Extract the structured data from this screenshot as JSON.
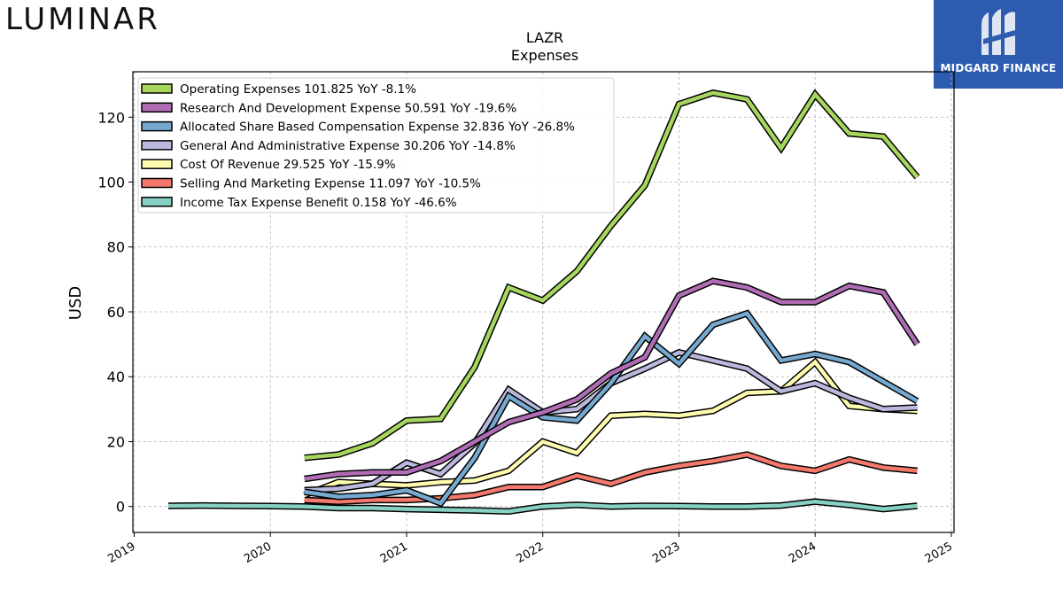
{
  "brand": {
    "left_logo": "LUMINAR",
    "right_logo": "MIDGARD FINANCE"
  },
  "chart_data": {
    "type": "line",
    "title": "LAZR",
    "subtitle": "Expenses",
    "ylabel": "USD",
    "xlabel": "",
    "ylim": [
      -8,
      134
    ],
    "xlim": [
      2018.99,
      2025.02
    ],
    "yticks": [
      0,
      20,
      40,
      60,
      80,
      100,
      120
    ],
    "xticks": [
      "2019",
      "2020",
      "2021",
      "2022",
      "2023",
      "2024",
      "2025"
    ],
    "grid": true,
    "legend_position": "top-left",
    "series": [
      {
        "name": "Operating Expenses  101.825 YoY -8.1%",
        "color": "#a6d65e",
        "x": [
          2020.25,
          2020.5,
          2020.75,
          2021.0,
          2021.25,
          2021.5,
          2021.75,
          2022.0,
          2022.25,
          2022.5,
          2022.75,
          2023.0,
          2023.25,
          2023.5,
          2023.75,
          2024.0,
          2024.25,
          2024.5,
          2024.75
        ],
        "y": [
          15,
          16,
          19.5,
          26.5,
          27,
          43,
          67.5,
          63.5,
          72.5,
          86.5,
          99,
          124,
          127.5,
          125.5,
          110.5,
          127,
          115,
          114,
          101.5
        ]
      },
      {
        "name": "Research And Development Expense  50.591 YoY -19.6%",
        "color": "#b06db5",
        "x": [
          2020.25,
          2020.5,
          2020.75,
          2021.0,
          2021.25,
          2021.5,
          2021.75,
          2022.0,
          2022.25,
          2022.5,
          2022.75,
          2023.0,
          2023.25,
          2023.5,
          2023.75,
          2024.0,
          2024.25,
          2024.5,
          2024.75
        ],
        "y": [
          8.5,
          10,
          10.5,
          10.5,
          14,
          20,
          26,
          29,
          33,
          41,
          46,
          65,
          69.5,
          67.5,
          63,
          63,
          68,
          66,
          50
        ]
      },
      {
        "name": "Allocated Share Based Compensation Expense  32.836 YoY -26.8%",
        "color": "#75a9d0",
        "x": [
          2020.25,
          2020.5,
          2020.75,
          2021.0,
          2021.25,
          2021.5,
          2021.75,
          2022.0,
          2022.25,
          2022.5,
          2022.75,
          2023.0,
          2023.25,
          2023.5,
          2023.75,
          2024.0,
          2024.25,
          2024.5,
          2024.75
        ],
        "y": [
          4.5,
          3,
          3.5,
          5,
          1,
          15,
          34,
          27.5,
          26.5,
          38,
          52.5,
          44,
          56,
          59.5,
          45,
          47,
          44.5,
          38.5,
          32.5
        ]
      },
      {
        "name": "General And Administrative Expense  30.206 YoY -14.8%",
        "color": "#bab8dc",
        "x": [
          2020.25,
          2020.5,
          2020.75,
          2021.0,
          2021.25,
          2021.5,
          2021.75,
          2022.0,
          2022.25,
          2022.5,
          2022.75,
          2023.0,
          2023.25,
          2023.5,
          2023.75,
          2024.0,
          2024.25,
          2024.5,
          2024.75
        ],
        "y": [
          5,
          5.5,
          7,
          13.5,
          10,
          19.5,
          36,
          29,
          30,
          38,
          42.5,
          47.5,
          45,
          42.5,
          35.5,
          38,
          33.5,
          30,
          30.5
        ]
      },
      {
        "name": "Cost Of Revenue  29.525 YoY -15.9%",
        "color": "#fffcb0",
        "x": [
          2020.25,
          2020.5,
          2020.75,
          2021.0,
          2021.25,
          2021.5,
          2021.75,
          2022.0,
          2022.25,
          2022.5,
          2022.75,
          2023.0,
          2023.25,
          2023.5,
          2023.75,
          2024.0,
          2024.25,
          2024.5,
          2024.75
        ],
        "y": [
          3.5,
          7.5,
          7,
          6.5,
          7.5,
          8,
          11,
          20,
          16.5,
          28,
          28.5,
          28,
          29.5,
          35,
          35.5,
          44.5,
          31,
          30,
          29.5
        ]
      },
      {
        "name": "Selling And Marketing Expense  11.097 YoY -10.5%",
        "color": "#f4786c",
        "x": [
          2020.25,
          2020.5,
          2020.75,
          2021.0,
          2021.25,
          2021.5,
          2021.75,
          2022.0,
          2022.25,
          2022.5,
          2022.75,
          2023.0,
          2023.25,
          2023.5,
          2023.75,
          2024.0,
          2024.25,
          2024.5,
          2024.75
        ],
        "y": [
          2,
          1.5,
          2,
          2,
          2.5,
          3.5,
          6,
          6,
          9.5,
          7,
          10.5,
          12.5,
          14,
          16,
          12.5,
          11,
          14.5,
          12,
          11
        ]
      },
      {
        "name": "Income Tax Expense Benefit  0.158 YoY -46.6%",
        "color": "#86d1c3",
        "x": [
          2019.25,
          2019.5,
          2019.75,
          2020.0,
          2020.25,
          2020.5,
          2020.75,
          2021.0,
          2021.25,
          2021.5,
          2021.75,
          2022.0,
          2022.25,
          2022.5,
          2022.75,
          2023.0,
          2023.25,
          2023.5,
          2023.75,
          2024.0,
          2024.25,
          2024.5,
          2024.75
        ],
        "y": [
          0.2,
          0.3,
          0.2,
          0.1,
          0,
          -0.5,
          -0.5,
          -0.8,
          -1,
          -1.2,
          -1.5,
          0,
          0.5,
          0,
          0.2,
          0.1,
          0,
          0,
          0.3,
          1.5,
          0.5,
          -0.8,
          0.2
        ]
      }
    ]
  }
}
